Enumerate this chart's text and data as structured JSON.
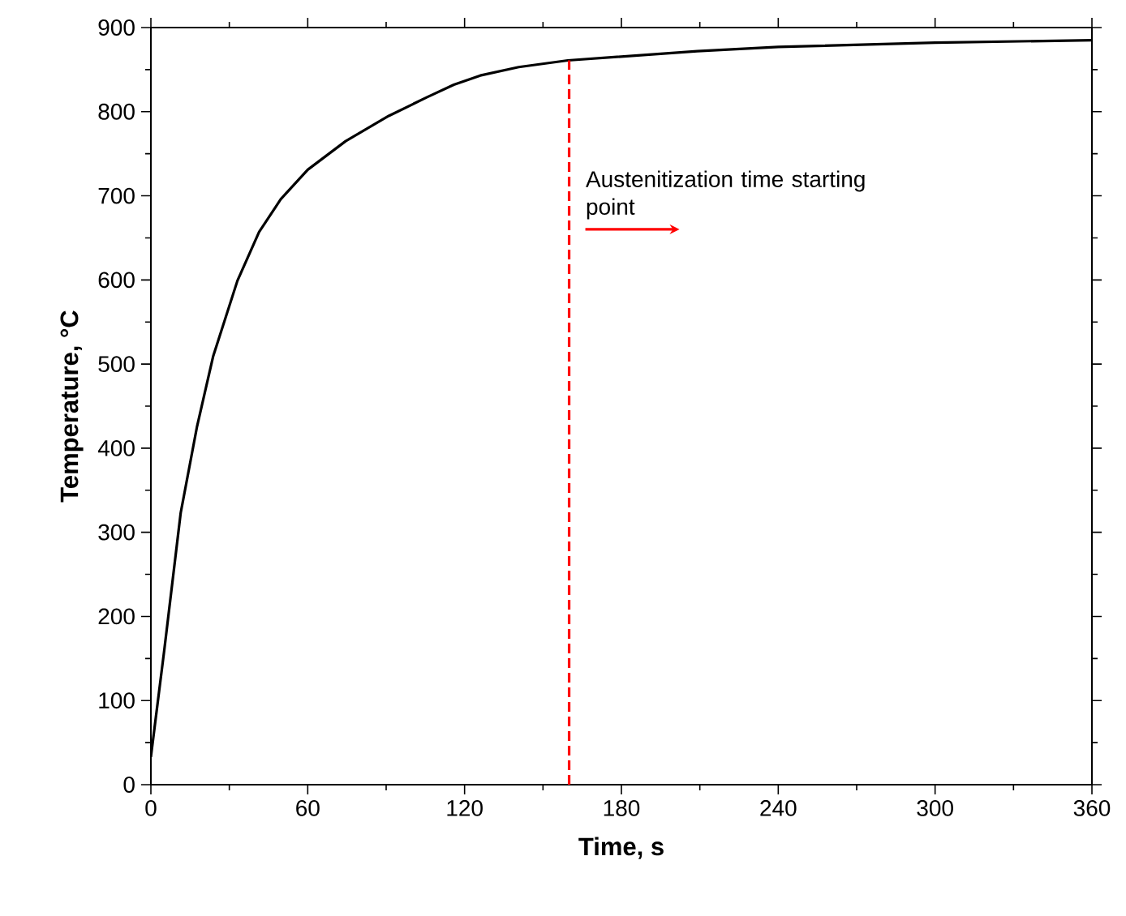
{
  "chart_data": {
    "type": "line",
    "xlabel": "Time, s",
    "ylabel": "Temperature, °C",
    "x": [
      0,
      5.2,
      11.4,
      17.6,
      23.8,
      33.1,
      41.4,
      49.7,
      60,
      74.5,
      91,
      105.5,
      115.9,
      126,
      140.7,
      159.5,
      209,
      240,
      300,
      360
    ],
    "series": [
      {
        "color": "#000000",
        "values": [
          33,
          162,
          323,
          425,
          509,
          599,
          657,
          696,
          731,
          765,
          795,
          817,
          832,
          843,
          853,
          861,
          872,
          877,
          882,
          885
        ]
      }
    ],
    "xlim": [
      0,
      360
    ],
    "xticks": [
      0,
      60,
      120,
      180,
      240,
      300,
      360
    ],
    "ylim": [
      0,
      900
    ],
    "yticks": [
      0,
      100,
      200,
      300,
      400,
      500,
      600,
      700,
      800,
      900
    ],
    "ref_lines": [
      {
        "axis": "x",
        "value": 160,
        "label": "Austenitization time starting point",
        "color": "#ff0000",
        "line_style": "dashed"
      }
    ]
  }
}
